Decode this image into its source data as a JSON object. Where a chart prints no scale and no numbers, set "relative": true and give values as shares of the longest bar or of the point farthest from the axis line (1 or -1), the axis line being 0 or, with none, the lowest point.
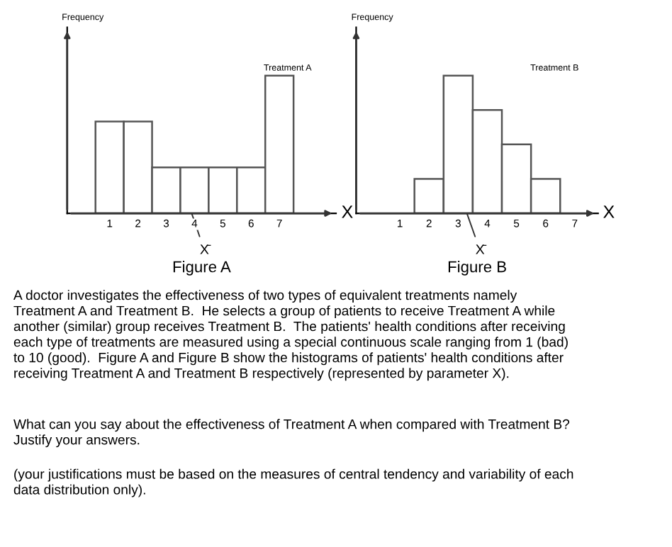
{
  "chart_data": [
    {
      "type": "bar",
      "title": "Figure A",
      "xlabel": "X",
      "ylabel": "Frequency",
      "relative": true,
      "x": [
        1,
        2,
        3,
        4,
        5,
        6,
        7
      ],
      "values": [
        0.667,
        0.667,
        0.333,
        0.333,
        0.333,
        0.333,
        1
      ],
      "color": "#ffffff",
      "xlim": [
        -0.5,
        9
      ],
      "xticks": [
        1,
        2,
        3,
        4,
        5,
        6,
        7
      ],
      "tick_labels": "x",
      "annotations": [
        "Treatment A",
        {
          "text": "X̄",
          "x": 3.9,
          "y": 0
        }
      ]
    },
    {
      "type": "bar",
      "title": "Figure B",
      "xlabel": "X",
      "ylabel": "Frequency",
      "relative": true,
      "x": [
        2,
        3,
        4,
        5,
        6
      ],
      "values": [
        0.25,
        1,
        0.75,
        0.5,
        0.25
      ],
      "color": "#ffffff",
      "xlim": [
        -0.5,
        7.8
      ],
      "xticks": [
        1,
        2,
        3,
        4,
        5,
        6,
        7
      ],
      "tick_labels": "x",
      "annotations": [
        "Treatment B",
        {
          "text": "X̄",
          "x": 3.3,
          "y": 0
        }
      ]
    },
    {
      "type": "other",
      "annotations": [
        "A doctor investigates the effectiveness of two types of equivalent treatments namely\nTreatment A and Treatment B.  He selects a group of patients to receive Treatment A while\nanother (similar) group receives Treatment B.  The patients' health conditions after receiving\neach type of treatments are measured using a special continuous scale ranging from 1 (bad)\nto 10 (good).  Figure A and Figure B show the histograms of patients' health conditions after\nreceiving Treatment A and Treatment B respectively (represented by parameter X).",
        "What can you say about the effectiveness of Treatment A when compared with Treatment B?\nJustify your answers.",
        "(your justifications must be based on the measures of central tendency and variability of each\ndata distribution only)."
      ]
    }
  ]
}
